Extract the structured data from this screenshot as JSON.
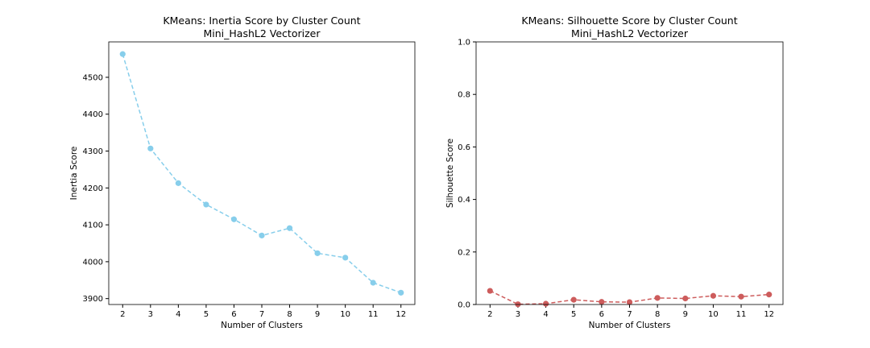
{
  "chart_data": [
    {
      "type": "line",
      "title": "KMeans: Inertia Score by Cluster Count",
      "subtitle": "Mini_HashL2 Vectorizer",
      "xlabel": "Number of Clusters",
      "ylabel": "Inertia Score",
      "x": [
        2,
        3,
        4,
        5,
        6,
        7,
        8,
        9,
        10,
        11,
        12
      ],
      "series": [
        {
          "values": [
            4563,
            4307,
            4213,
            4155,
            4115,
            4071,
            4091,
            4023,
            4011,
            3943,
            3916
          ],
          "color": "#87ceeb",
          "line_style": "dashed",
          "marker": "circle"
        }
      ],
      "xticks": [
        "2",
        "3",
        "4",
        "5",
        "6",
        "7",
        "8",
        "9",
        "10",
        "11",
        "12"
      ],
      "yticks": [
        "3900",
        "4000",
        "4100",
        "4200",
        "4300",
        "4400",
        "4500"
      ],
      "xlim": [
        1.5,
        12.5
      ],
      "ylim": [
        3884,
        4596
      ],
      "grid": false
    },
    {
      "type": "line",
      "title": "KMeans: Silhouette Score by Cluster Count",
      "subtitle": "Mini_HashL2 Vectorizer",
      "xlabel": "Number of Clusters",
      "ylabel": "Silhouette Score",
      "x": [
        2,
        3,
        4,
        5,
        6,
        7,
        8,
        9,
        10,
        11,
        12
      ],
      "series": [
        {
          "values": [
            0.052,
            0.001,
            0.003,
            0.018,
            0.01,
            0.009,
            0.025,
            0.023,
            0.033,
            0.03,
            0.038
          ],
          "color": "#cd5c5c",
          "line_style": "dashed",
          "marker": "circle"
        }
      ],
      "xticks": [
        "2",
        "3",
        "4",
        "5",
        "6",
        "7",
        "8",
        "9",
        "10",
        "11",
        "12"
      ],
      "yticks": [
        "0.0",
        "0.2",
        "0.4",
        "0.6",
        "0.8",
        "1.0"
      ],
      "xlim": [
        1.5,
        12.5
      ],
      "ylim": [
        0,
        1
      ],
      "grid": false
    }
  ]
}
